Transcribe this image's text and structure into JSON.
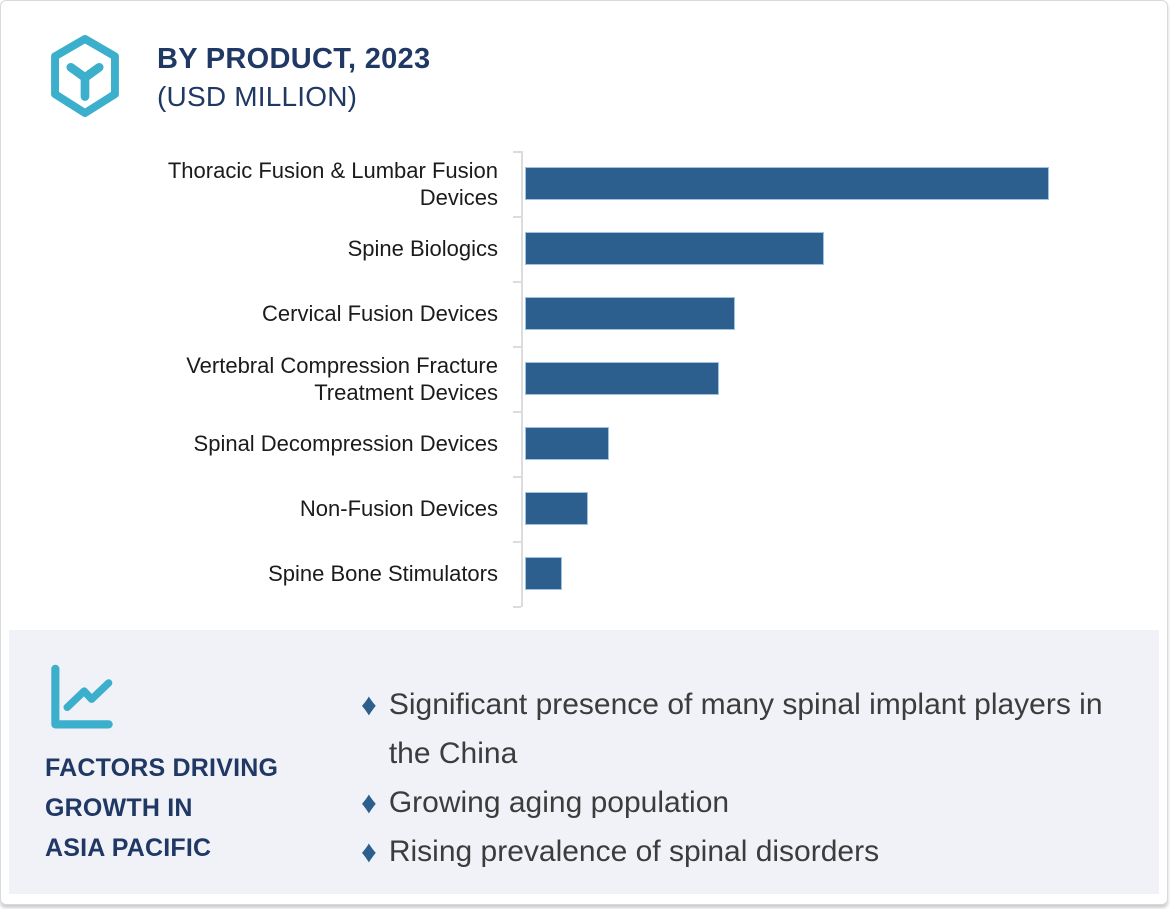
{
  "header": {
    "title_line1": "BY PRODUCT, 2023",
    "title_line2": "(USD MILLION)",
    "logo_icon": "hexagon-cube-logo",
    "title_color": "#1F3864",
    "accent_color": "#3BAFCB"
  },
  "chart_data": {
    "type": "bar",
    "orientation": "horizontal",
    "title": "BY PRODUCT, 2023 (USD MILLION)",
    "categories": [
      "Thoracic Fusion & Lumbar Fusion Devices",
      "Spine Biologics",
      "Cervical Fusion Devices",
      "Vertebral Compression Fracture Treatment Devices",
      "Spinal Decompression Devices",
      "Non-Fusion Devices",
      "Spine Bone Stimulators"
    ],
    "values": [
      100,
      57,
      40,
      37,
      16,
      12,
      7
    ],
    "values_are_estimates_relative_max_100": true,
    "value_labels_shown": false,
    "xlabel": "",
    "ylabel": "",
    "xlim": [
      0,
      122
    ],
    "grid": false,
    "legend": false,
    "bar_color": "#2D5F8E",
    "axis_color": "#DCDCDE"
  },
  "factors_panel": {
    "icon": "line-chart-icon",
    "heading_lines": [
      "FACTORS DRIVING",
      "GROWTH IN",
      "ASIA PACIFIC"
    ],
    "heading_color": "#1F3864",
    "background": "#F1F2F7",
    "bullet_marker": "♦",
    "bullet_marker_color": "#2D5F8E",
    "bullets": [
      "Significant presence of many spinal implant players in the China",
      "Growing aging population",
      "Rising prevalence of spinal disorders"
    ]
  }
}
